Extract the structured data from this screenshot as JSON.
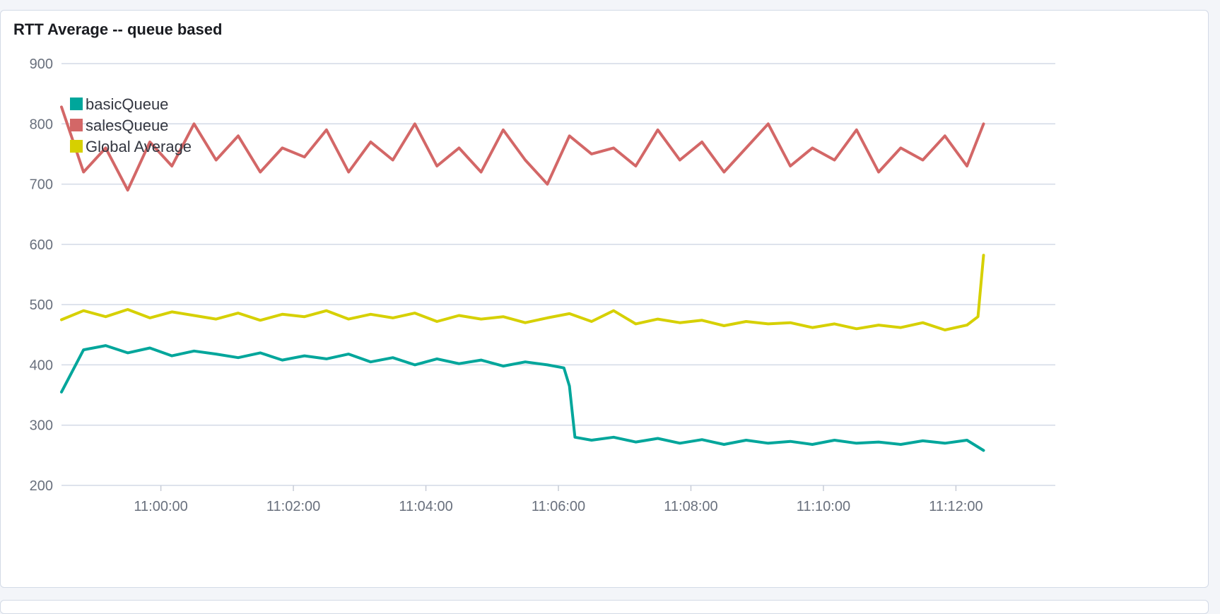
{
  "panel": {
    "title": "RTT Average -- queue based"
  },
  "chart_data": {
    "type": "line",
    "title": "RTT Average -- queue based",
    "xlabel": "",
    "ylabel": "",
    "ylim": [
      200,
      900
    ],
    "yticks": [
      200,
      300,
      400,
      500,
      600,
      700,
      800,
      900
    ],
    "x_range": [
      "10:58:30",
      "11:13:30"
    ],
    "xticks": [
      "11:00:00",
      "11:02:00",
      "11:04:00",
      "11:06:00",
      "11:08:00",
      "11:10:00",
      "11:12:00"
    ],
    "grid": "horizontal",
    "legend_position": "top-left",
    "series": [
      {
        "name": "basicQueue",
        "color": "#00a69b",
        "x": [
          "10:58:30",
          "10:58:50",
          "10:59:10",
          "10:59:30",
          "10:59:50",
          "11:00:10",
          "11:00:30",
          "11:00:50",
          "11:01:10",
          "11:01:30",
          "11:01:50",
          "11:02:10",
          "11:02:30",
          "11:02:50",
          "11:03:10",
          "11:03:30",
          "11:03:50",
          "11:04:10",
          "11:04:30",
          "11:04:50",
          "11:05:10",
          "11:05:30",
          "11:05:50",
          "11:06:05",
          "11:06:10",
          "11:06:15",
          "11:06:30",
          "11:06:50",
          "11:07:10",
          "11:07:30",
          "11:07:50",
          "11:08:10",
          "11:08:30",
          "11:08:50",
          "11:09:10",
          "11:09:30",
          "11:09:50",
          "11:10:10",
          "11:10:30",
          "11:10:50",
          "11:11:10",
          "11:11:30",
          "11:11:50",
          "11:12:10",
          "11:12:25"
        ],
        "values": [
          355,
          425,
          432,
          420,
          428,
          415,
          423,
          418,
          412,
          420,
          408,
          415,
          410,
          418,
          405,
          412,
          400,
          410,
          402,
          408,
          398,
          405,
          400,
          395,
          365,
          280,
          275,
          280,
          272,
          278,
          270,
          276,
          268,
          275,
          270,
          273,
          268,
          275,
          270,
          272,
          268,
          274,
          270,
          275,
          258
        ]
      },
      {
        "name": "salesQueue",
        "color": "#d36767",
        "x": [
          "10:58:30",
          "10:58:50",
          "10:59:10",
          "10:59:30",
          "10:59:50",
          "11:00:10",
          "11:00:30",
          "11:00:50",
          "11:01:10",
          "11:01:30",
          "11:01:50",
          "11:02:10",
          "11:02:30",
          "11:02:50",
          "11:03:10",
          "11:03:30",
          "11:03:50",
          "11:04:10",
          "11:04:30",
          "11:04:50",
          "11:05:10",
          "11:05:30",
          "11:05:50",
          "11:06:10",
          "11:06:30",
          "11:06:50",
          "11:07:10",
          "11:07:30",
          "11:07:50",
          "11:08:10",
          "11:08:30",
          "11:08:50",
          "11:09:10",
          "11:09:30",
          "11:09:50",
          "11:10:10",
          "11:10:30",
          "11:10:50",
          "11:11:10",
          "11:11:30",
          "11:11:50",
          "11:12:10",
          "11:12:25"
        ],
        "values": [
          828,
          720,
          760,
          690,
          770,
          730,
          800,
          740,
          780,
          720,
          760,
          745,
          790,
          720,
          770,
          740,
          800,
          730,
          760,
          720,
          790,
          740,
          700,
          780,
          750,
          760,
          730,
          790,
          740,
          770,
          720,
          760,
          800,
          730,
          760,
          740,
          790,
          720,
          760,
          740,
          780,
          730,
          800
        ]
      },
      {
        "name": "Global Average",
        "color": "#d6d000",
        "x": [
          "10:58:30",
          "10:58:50",
          "10:59:10",
          "10:59:30",
          "10:59:50",
          "11:00:10",
          "11:00:30",
          "11:00:50",
          "11:01:10",
          "11:01:30",
          "11:01:50",
          "11:02:10",
          "11:02:30",
          "11:02:50",
          "11:03:10",
          "11:03:30",
          "11:03:50",
          "11:04:10",
          "11:04:30",
          "11:04:50",
          "11:05:10",
          "11:05:30",
          "11:05:50",
          "11:06:10",
          "11:06:30",
          "11:06:50",
          "11:07:10",
          "11:07:30",
          "11:07:50",
          "11:08:10",
          "11:08:30",
          "11:08:50",
          "11:09:10",
          "11:09:30",
          "11:09:50",
          "11:10:10",
          "11:10:30",
          "11:10:50",
          "11:11:10",
          "11:11:30",
          "11:11:50",
          "11:12:10",
          "11:12:20",
          "11:12:25"
        ],
        "values": [
          475,
          490,
          480,
          492,
          478,
          488,
          482,
          476,
          486,
          474,
          484,
          480,
          490,
          476,
          484,
          478,
          486,
          472,
          482,
          476,
          480,
          470,
          478,
          485,
          472,
          490,
          468,
          476,
          470,
          474,
          465,
          472,
          468,
          470,
          462,
          468,
          460,
          466,
          462,
          470,
          458,
          466,
          480,
          582
        ]
      }
    ]
  }
}
